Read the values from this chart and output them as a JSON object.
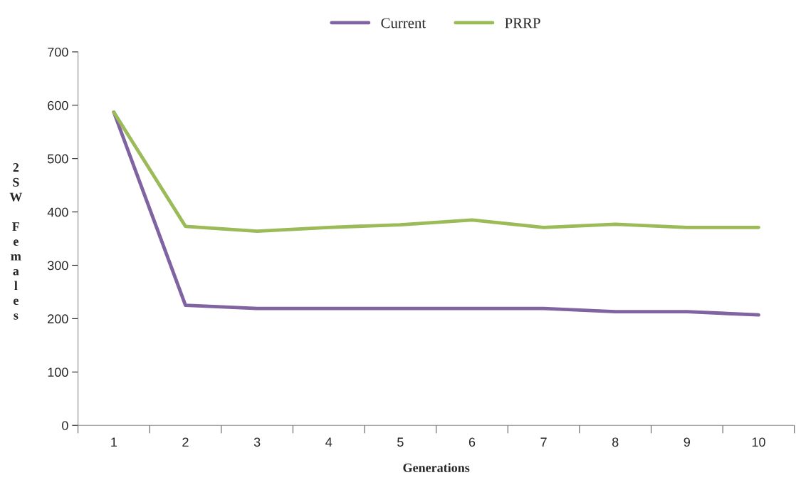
{
  "chart_data": {
    "type": "line",
    "xlabel": "Generations",
    "ylabel": "2SW Females",
    "categories": [
      "1",
      "2",
      "3",
      "4",
      "5",
      "6",
      "7",
      "8",
      "9",
      "10"
    ],
    "series": [
      {
        "name": "Current",
        "color": "#8064a2",
        "values": [
          587,
          225,
          219,
          219,
          219,
          219,
          219,
          213,
          213,
          207
        ]
      },
      {
        "name": "PRRP",
        "color": "#9bbb59",
        "values": [
          587,
          373,
          364,
          371,
          376,
          385,
          371,
          377,
          371,
          371
        ]
      }
    ],
    "ylim": [
      0,
      700
    ],
    "yticks": [
      0,
      100,
      200,
      300,
      400,
      500,
      600,
      700
    ],
    "grid": false,
    "legend": "top",
    "marker": "none",
    "line_style": "solid"
  }
}
